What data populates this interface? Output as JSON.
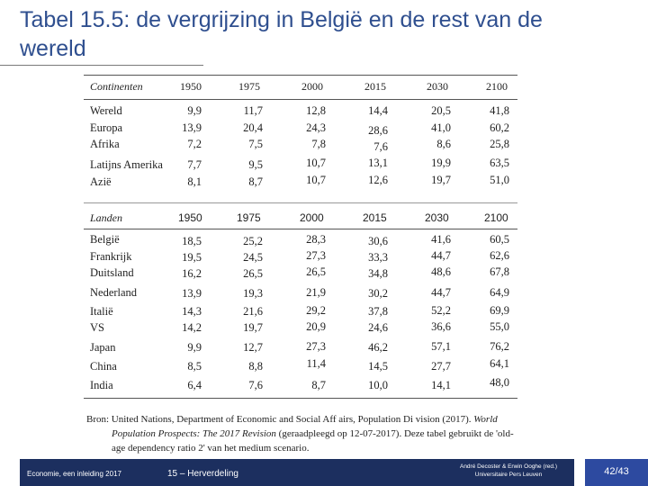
{
  "title": "Tabel 15.5: de vergrijzing in België en de rest van de wereld",
  "table1": {
    "header": "Continenten",
    "years": [
      "1950",
      "1975",
      "2000",
      "2015",
      "2030",
      "2100"
    ],
    "rows": [
      {
        "label": "Wereld",
        "values": [
          "9,9",
          "11,7",
          "12,8",
          "14,4",
          "20,5",
          "41,8"
        ]
      },
      {
        "label": "Europa",
        "values": [
          "13,9",
          "20,4",
          "24,3",
          "28,6",
          "41,0",
          "60,2"
        ]
      },
      {
        "label": "Afrika",
        "values": [
          "7,2",
          "7,5",
          "7,8",
          "7,6",
          "8,6",
          "25,8"
        ]
      },
      {
        "label": "Latijns Amerika",
        "values": [
          "7,7",
          "9,5",
          "10,7",
          "13,1",
          "19,9",
          "63,5"
        ]
      },
      {
        "label": "Azië",
        "values": [
          "8,1",
          "8,7",
          "10,7",
          "12,6",
          "19,7",
          "51,0"
        ]
      }
    ]
  },
  "table2": {
    "header": "Landen",
    "years": [
      "1950",
      "1975",
      "2000",
      "2015",
      "2030",
      "2100"
    ],
    "rows": [
      {
        "label": "België",
        "values": [
          "18,5",
          "25,2",
          "28,3",
          "30,6",
          "41,6",
          "60,5"
        ]
      },
      {
        "label": "Frankrijk",
        "values": [
          "19,5",
          "24,5",
          "27,3",
          "33,3",
          "44,7",
          "62,6"
        ]
      },
      {
        "label": "Duitsland",
        "values": [
          "16,2",
          "26,5",
          "26,5",
          "34,8",
          "48,6",
          "67,8"
        ]
      },
      {
        "label": "Nederland",
        "values": [
          "13,9",
          "19,3",
          "21,9",
          "30,2",
          "44,7",
          "64,9"
        ]
      },
      {
        "label": "Italië",
        "values": [
          "14,3",
          "21,6",
          "29,2",
          "37,8",
          "52,2",
          "69,9"
        ]
      },
      {
        "label": "VS",
        "values": [
          "14,2",
          "19,7",
          "20,9",
          "24,6",
          "36,6",
          "55,0"
        ]
      },
      {
        "label": "Japan",
        "values": [
          "9,9",
          "12,7",
          "27,3",
          "46,2",
          "57,1",
          "76,2"
        ]
      },
      {
        "label": "China",
        "values": [
          "8,5",
          "8,8",
          "11,4",
          "14,5",
          "27,7",
          "64,1"
        ]
      },
      {
        "label": "India",
        "values": [
          "6,4",
          "7,6",
          "8,7",
          "10,0",
          "14,1",
          "48,0"
        ]
      }
    ]
  },
  "source": {
    "line1_prefix": "Bron: United Nations, Department of Economic and Social Aff airs, Population Di vision (2017).",
    "line1_italic": "World",
    "line2_italic": "Population Prospects: The 2017 Revision",
    "line2_rest": "(geraadpleegd op 12-07-2017). Deze tabel gebruikt de 'old-",
    "line3": "age dependency ratio 2' van het medium scenario."
  },
  "footer": {
    "left": "Economie, een inleiding 2017",
    "middle": "15 – Herverdeling",
    "right_line1": "André Decoster & Erwin Ooghe (red.)",
    "right_line2": "Universitaire Pers Leuven",
    "page": "42/43"
  }
}
